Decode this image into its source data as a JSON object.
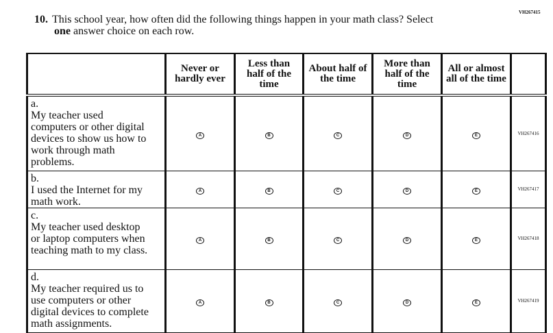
{
  "question_id": "VH267415",
  "question": {
    "number": "10.",
    "line1": "This school year, how often did the following things happen in your math class? Select",
    "line2_bold": "one",
    "line2_rest": " answer choice on each row."
  },
  "columns": [
    "Never or hardly ever",
    "Less than half of the time",
    "About half of the time",
    "More than half of the time",
    "All or almost all of the time"
  ],
  "bubbles": [
    "A",
    "B",
    "C",
    "D",
    "E"
  ],
  "rows": [
    {
      "letter": "a.",
      "text": "My teacher used computers or other digital devices to show us how to work through math problems.",
      "id": "VH267416"
    },
    {
      "letter": "b.",
      "text": "I used the Internet for my math work.",
      "id": "VH267417"
    },
    {
      "letter": "c.",
      "text": "My teacher used desktop or laptop computers when teaching math to my class.",
      "id": "VH267418"
    },
    {
      "letter": "d.",
      "text": "My teacher required us to use computers or other digital devices to complete math assignments.",
      "id": "VH267419"
    }
  ]
}
